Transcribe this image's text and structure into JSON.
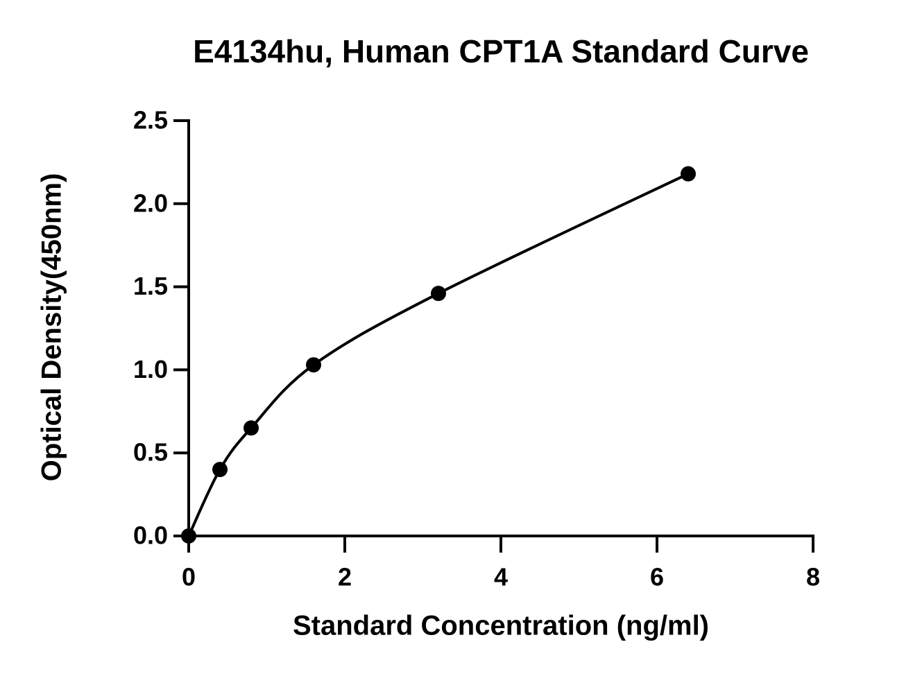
{
  "chart_data": {
    "type": "scatter",
    "title": "E4134hu, Human CPT1A Standard Curve",
    "x_label": "Standard Concentration (ng/ml)",
    "y_label": "Optical Density(450nm)",
    "x": [
      0,
      0.4,
      0.8,
      1.6,
      3.2,
      6.4
    ],
    "values": [
      0.0,
      0.4,
      0.65,
      1.03,
      1.46,
      2.18
    ],
    "color": "#000000",
    "curve": true,
    "xlim": [
      0,
      8
    ],
    "xticks": [
      0,
      2,
      4,
      6,
      8
    ],
    "ylim": [
      0,
      2.5
    ],
    "yticks": [
      {
        "value": 0,
        "label": "0.0"
      },
      0.5,
      {
        "value": 1,
        "label": "1.0"
      },
      1.5,
      {
        "value": 2,
        "label": "2.0"
      },
      2.5
    ]
  }
}
